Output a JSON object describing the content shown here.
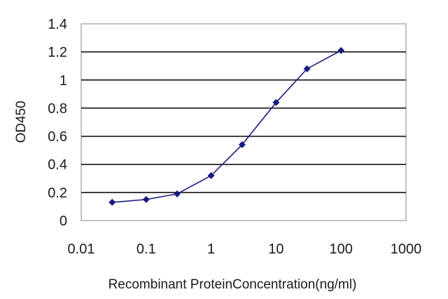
{
  "chart_data": {
    "type": "line",
    "title": "",
    "xlabel": "Recombinant ProteinConcentration(ng/ml)",
    "ylabel": "OD450",
    "x_scale": "log",
    "xlim": [
      0.01,
      1000
    ],
    "ylim": [
      0,
      1.4
    ],
    "x_ticks": [
      "0.01",
      "0.1",
      "1",
      "10",
      "100",
      "1000"
    ],
    "y_ticks": [
      "0",
      "0.2",
      "0.4",
      "0.6",
      "0.8",
      "1",
      "1.2",
      "1.4"
    ],
    "grid": "horizontal",
    "legend": "none",
    "series": [
      {
        "color": "#1a1a80",
        "marker": "diamond",
        "x": [
          0.03,
          0.1,
          0.3,
          1,
          3,
          10,
          30,
          100
        ],
        "values": [
          0.13,
          0.15,
          0.19,
          0.32,
          0.54,
          0.84,
          1.08,
          1.21
        ]
      }
    ]
  }
}
